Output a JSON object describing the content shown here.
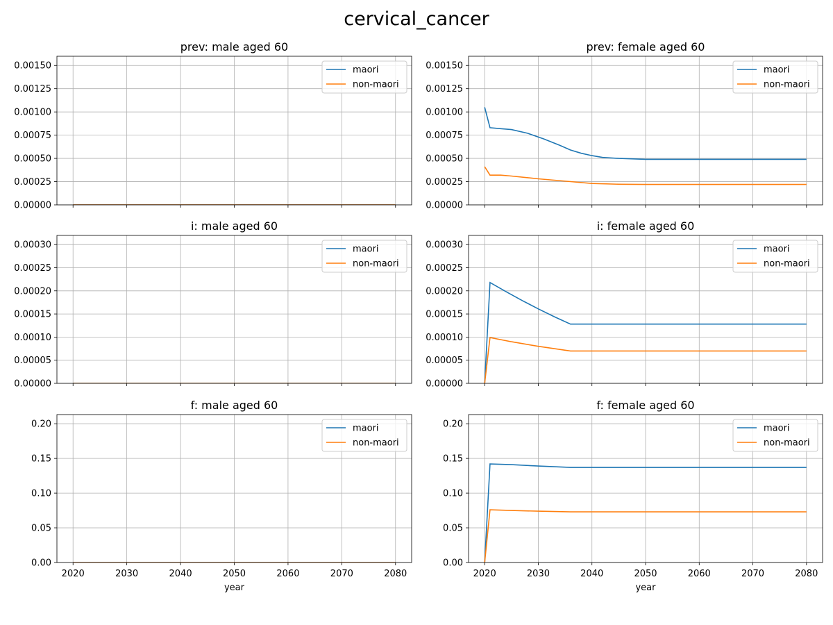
{
  "figure": {
    "title": "cervical_cancer",
    "xlabel": "year"
  },
  "chart_data": [
    {
      "type": "line",
      "title": "prev: male aged 60",
      "xlabel": "",
      "ylabel": "",
      "xlim": [
        2020,
        2080
      ],
      "ylim": [
        0,
        0.0015
      ],
      "x_ticks": [
        "2020",
        "2030",
        "2040",
        "2050",
        "2060",
        "2070",
        "2080"
      ],
      "y_ticks": [
        "0.00000",
        "0.00025",
        "0.00050",
        "0.00075",
        "0.00100",
        "0.00125",
        "0.00150"
      ],
      "grid": true,
      "legend": "upper-right",
      "series": [
        {
          "name": "maori",
          "color": "#1f77b4",
          "x": [
            2020,
            2080
          ],
          "values": [
            0,
            0
          ]
        },
        {
          "name": "non-maori",
          "color": "#ff7f0e",
          "x": [
            2020,
            2080
          ],
          "values": [
            0,
            0
          ]
        }
      ]
    },
    {
      "type": "line",
      "title": "prev: female aged 60",
      "xlabel": "",
      "ylabel": "",
      "xlim": [
        2020,
        2080
      ],
      "ylim": [
        0,
        0.0015
      ],
      "x_ticks": [
        "2020",
        "2030",
        "2040",
        "2050",
        "2060",
        "2070",
        "2080"
      ],
      "y_ticks": [
        "0.00000",
        "0.00025",
        "0.00050",
        "0.00075",
        "0.00100",
        "0.00125",
        "0.00150"
      ],
      "grid": true,
      "legend": "upper-right",
      "series": [
        {
          "name": "maori",
          "color": "#1f77b4",
          "x": [
            2020,
            2021,
            2023,
            2025,
            2028,
            2031,
            2034,
            2036,
            2038,
            2040,
            2042,
            2045,
            2050,
            2060,
            2070,
            2080
          ],
          "values": [
            0.00105,
            0.00083,
            0.00082,
            0.00081,
            0.00077,
            0.00071,
            0.00064,
            0.00059,
            0.000555,
            0.00053,
            0.00051,
            0.0005,
            0.00049,
            0.00049,
            0.00049,
            0.00049
          ]
        },
        {
          "name": "non-maori",
          "color": "#ff7f0e",
          "x": [
            2020,
            2021,
            2023,
            2025,
            2030,
            2036,
            2040,
            2045,
            2050,
            2060,
            2070,
            2080
          ],
          "values": [
            0.00041,
            0.00032,
            0.00032,
            0.00031,
            0.00028,
            0.00025,
            0.00023,
            0.000222,
            0.00022,
            0.00022,
            0.00022,
            0.00022
          ]
        }
      ]
    },
    {
      "type": "line",
      "title": "i: male aged 60",
      "xlabel": "",
      "ylabel": "",
      "xlim": [
        2020,
        2080
      ],
      "ylim": [
        0,
        0.0003
      ],
      "x_ticks": [
        "2020",
        "2030",
        "2040",
        "2050",
        "2060",
        "2070",
        "2080"
      ],
      "y_ticks": [
        "0.00000",
        "0.00005",
        "0.00010",
        "0.00015",
        "0.00020",
        "0.00025",
        "0.00030"
      ],
      "grid": true,
      "legend": "upper-right",
      "series": [
        {
          "name": "maori",
          "color": "#1f77b4",
          "x": [
            2020,
            2080
          ],
          "values": [
            0,
            0
          ]
        },
        {
          "name": "non-maori",
          "color": "#ff7f0e",
          "x": [
            2020,
            2080
          ],
          "values": [
            0,
            0
          ]
        }
      ]
    },
    {
      "type": "line",
      "title": "i: female aged 60",
      "xlabel": "",
      "ylabel": "",
      "xlim": [
        2020,
        2080
      ],
      "ylim": [
        0,
        0.0003
      ],
      "x_ticks": [
        "2020",
        "2030",
        "2040",
        "2050",
        "2060",
        "2070",
        "2080"
      ],
      "y_ticks": [
        "0.00000",
        "0.00005",
        "0.00010",
        "0.00015",
        "0.00020",
        "0.00025",
        "0.00030"
      ],
      "grid": true,
      "legend": "upper-right",
      "series": [
        {
          "name": "maori",
          "color": "#1f77b4",
          "x": [
            2020,
            2021,
            2024,
            2027,
            2030,
            2033,
            2036,
            2040,
            2050,
            2060,
            2070,
            2080
          ],
          "values": [
            0,
            0.000218,
            0.000198,
            0.000179,
            0.000161,
            0.000144,
            0.000128,
            0.000128,
            0.000128,
            0.000128,
            0.000128,
            0.000128
          ]
        },
        {
          "name": "non-maori",
          "color": "#ff7f0e",
          "x": [
            2020,
            2021,
            2025,
            2030,
            2036,
            2040,
            2050,
            2060,
            2070,
            2080
          ],
          "values": [
            0,
            9.9e-05,
            9e-05,
            8e-05,
            7e-05,
            7e-05,
            7e-05,
            7e-05,
            7e-05,
            7e-05
          ]
        }
      ]
    },
    {
      "type": "line",
      "title": "f: male aged 60",
      "xlabel": "year",
      "ylabel": "",
      "xlim": [
        2020,
        2080
      ],
      "ylim": [
        0,
        0.2
      ],
      "x_ticks": [
        "2020",
        "2030",
        "2040",
        "2050",
        "2060",
        "2070",
        "2080"
      ],
      "y_ticks": [
        "0.00",
        "0.05",
        "0.10",
        "0.15",
        "0.20"
      ],
      "grid": true,
      "legend": "upper-right",
      "series": [
        {
          "name": "maori",
          "color": "#1f77b4",
          "x": [
            2020,
            2080
          ],
          "values": [
            0,
            0
          ]
        },
        {
          "name": "non-maori",
          "color": "#ff7f0e",
          "x": [
            2020,
            2080
          ],
          "values": [
            0,
            0
          ]
        }
      ]
    },
    {
      "type": "line",
      "title": "f: female aged 60",
      "xlabel": "year",
      "ylabel": "",
      "xlim": [
        2020,
        2080
      ],
      "ylim": [
        0,
        0.2
      ],
      "x_ticks": [
        "2020",
        "2030",
        "2040",
        "2050",
        "2060",
        "2070",
        "2080"
      ],
      "y_ticks": [
        "0.00",
        "0.05",
        "0.10",
        "0.15",
        "0.20"
      ],
      "grid": true,
      "legend": "upper-right",
      "series": [
        {
          "name": "maori",
          "color": "#1f77b4",
          "x": [
            2020,
            2021,
            2025,
            2030,
            2036,
            2040,
            2050,
            2060,
            2070,
            2080
          ],
          "values": [
            0,
            0.142,
            0.141,
            0.139,
            0.137,
            0.137,
            0.137,
            0.137,
            0.137,
            0.137
          ]
        },
        {
          "name": "non-maori",
          "color": "#ff7f0e",
          "x": [
            2020,
            2021,
            2025,
            2030,
            2036,
            2040,
            2050,
            2060,
            2070,
            2080
          ],
          "values": [
            0,
            0.076,
            0.075,
            0.074,
            0.073,
            0.073,
            0.073,
            0.073,
            0.073,
            0.073
          ]
        }
      ]
    }
  ]
}
